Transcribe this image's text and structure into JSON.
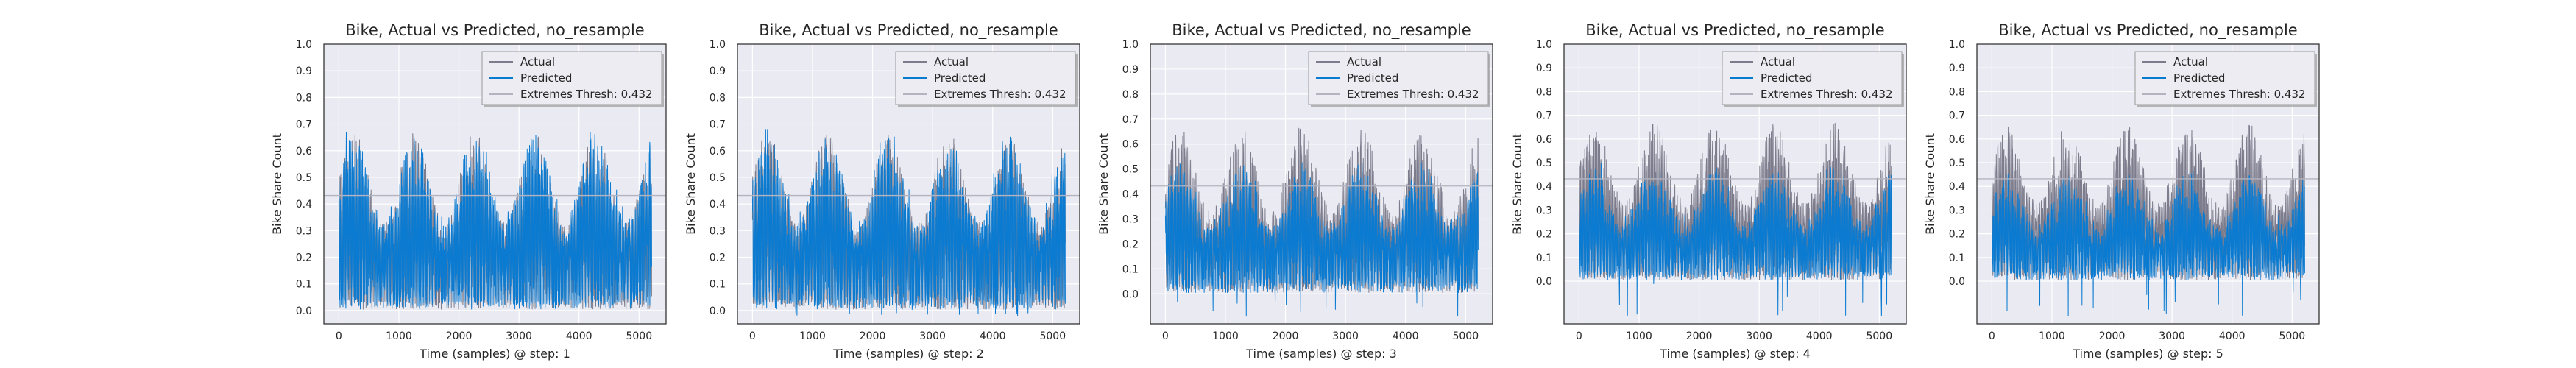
{
  "figure": {
    "colors": {
      "background": "#ffffff",
      "axes_face": "#eaeaf2",
      "grid": "#ffffff",
      "actual": "#7c7c8c",
      "predicted": "#0b7bd1",
      "threshold": "#b4b4c0",
      "legend_face": "#ececf2",
      "legend_edge": "#9a9a9a"
    }
  },
  "chart_data": [
    {
      "type": "line",
      "title": "Bike, Actual vs Predicted, no_resample",
      "xlabel": "Time (samples) @ step: 1",
      "ylabel": "Bike Share Count",
      "xlim": [
        -250,
        5450
      ],
      "ylim": [
        -0.05,
        1.0
      ],
      "xticks": [
        0,
        1000,
        2000,
        3000,
        4000,
        5000
      ],
      "xtick_labels": [
        "0",
        "1000",
        "2000",
        "3000",
        "4000",
        "5000"
      ],
      "yticks": [
        0.0,
        0.1,
        0.2,
        0.3,
        0.4,
        0.5,
        0.6,
        0.7,
        0.8,
        0.9,
        1.0
      ],
      "ytick_labels": [
        "0.0",
        "0.1",
        "0.2",
        "0.3",
        "0.4",
        "0.5",
        "0.6",
        "0.7",
        "0.8",
        "0.9",
        "1.0"
      ],
      "grid": true,
      "legend_position": "top-right",
      "series": [
        {
          "name": "Actual",
          "x_range": [
            0,
            5210
          ],
          "approx_range": [
            0.0,
            0.69
          ],
          "role": "actual"
        },
        {
          "name": "Predicted",
          "x_range": [
            0,
            5210
          ],
          "approx_range": [
            0.0,
            0.69
          ],
          "role": "predicted"
        },
        {
          "name": "Extremes Thresh: 0.432",
          "y": 0.432,
          "role": "threshold"
        }
      ]
    },
    {
      "type": "line",
      "title": "Bike, Actual vs Predicted, no_resample",
      "xlabel": "Time (samples) @ step: 2",
      "ylabel": "Bike Share Count",
      "xlim": [
        -250,
        5450
      ],
      "ylim": [
        -0.05,
        1.0
      ],
      "xticks": [
        0,
        1000,
        2000,
        3000,
        4000,
        5000
      ],
      "xtick_labels": [
        "0",
        "1000",
        "2000",
        "3000",
        "4000",
        "5000"
      ],
      "yticks": [
        0.0,
        0.1,
        0.2,
        0.3,
        0.4,
        0.5,
        0.6,
        0.7,
        0.8,
        0.9,
        1.0
      ],
      "ytick_labels": [
        "0.0",
        "0.1",
        "0.2",
        "0.3",
        "0.4",
        "0.5",
        "0.6",
        "0.7",
        "0.8",
        "0.9",
        "1.0"
      ],
      "grid": true,
      "legend_position": "top-right",
      "series": [
        {
          "name": "Actual",
          "x_range": [
            0,
            5210
          ],
          "approx_range": [
            0.0,
            0.69
          ],
          "role": "actual"
        },
        {
          "name": "Predicted",
          "x_range": [
            0,
            5210
          ],
          "approx_range": [
            -0.02,
            0.68
          ],
          "role": "predicted"
        },
        {
          "name": "Extremes Thresh: 0.432",
          "y": 0.432,
          "role": "threshold"
        }
      ]
    },
    {
      "type": "line",
      "title": "Bike, Actual vs Predicted, no_resample",
      "xlabel": "Time (samples) @ step: 3",
      "ylabel": "Bike Share Count",
      "xlim": [
        -250,
        5450
      ],
      "ylim": [
        -0.12,
        1.0
      ],
      "xticks": [
        0,
        1000,
        2000,
        3000,
        4000,
        5000
      ],
      "xtick_labels": [
        "0",
        "1000",
        "2000",
        "3000",
        "4000",
        "5000"
      ],
      "yticks": [
        0.0,
        0.1,
        0.2,
        0.3,
        0.4,
        0.5,
        0.6,
        0.7,
        0.8,
        0.9,
        1.0
      ],
      "ytick_labels": [
        "0.0",
        "0.1",
        "0.2",
        "0.3",
        "0.4",
        "0.5",
        "0.6",
        "0.7",
        "0.8",
        "0.9",
        "1.0"
      ],
      "grid": true,
      "legend_position": "top-right",
      "series": [
        {
          "name": "Actual",
          "x_range": [
            0,
            5210
          ],
          "approx_range": [
            0.0,
            0.69
          ],
          "role": "actual"
        },
        {
          "name": "Predicted",
          "x_range": [
            0,
            5210
          ],
          "approx_range": [
            -0.09,
            0.55
          ],
          "role": "predicted"
        },
        {
          "name": "Extremes Thresh: 0.432",
          "y": 0.432,
          "role": "threshold"
        }
      ]
    },
    {
      "type": "line",
      "title": "Bike, Actual vs Predicted, no_resample",
      "xlabel": "Time (samples) @ step: 4",
      "ylabel": "Bike Share Count",
      "xlim": [
        -250,
        5450
      ],
      "ylim": [
        -0.18,
        1.0
      ],
      "xticks": [
        0,
        1000,
        2000,
        3000,
        4000,
        5000
      ],
      "xtick_labels": [
        "0",
        "1000",
        "2000",
        "3000",
        "4000",
        "5000"
      ],
      "yticks": [
        0.0,
        0.1,
        0.2,
        0.3,
        0.4,
        0.5,
        0.6,
        0.7,
        0.8,
        0.9,
        1.0
      ],
      "ytick_labels": [
        "0.0",
        "0.1",
        "0.2",
        "0.3",
        "0.4",
        "0.5",
        "0.6",
        "0.7",
        "0.8",
        "0.9",
        "1.0"
      ],
      "grid": true,
      "legend_position": "top-right",
      "series": [
        {
          "name": "Actual",
          "x_range": [
            0,
            5210
          ],
          "approx_range": [
            0.0,
            0.69
          ],
          "role": "actual"
        },
        {
          "name": "Predicted",
          "x_range": [
            0,
            5210
          ],
          "approx_range": [
            -0.15,
            0.5
          ],
          "role": "predicted"
        },
        {
          "name": "Extremes Thresh: 0.432",
          "y": 0.432,
          "role": "threshold"
        }
      ]
    },
    {
      "type": "line",
      "title": "Bike, Actual vs Predicted, no_resample",
      "xlabel": "Time (samples) @ step: 5",
      "ylabel": "Bike Share Count",
      "xlim": [
        -250,
        5450
      ],
      "ylim": [
        -0.18,
        1.0
      ],
      "xticks": [
        0,
        1000,
        2000,
        3000,
        4000,
        5000
      ],
      "xtick_labels": [
        "0",
        "1000",
        "2000",
        "3000",
        "4000",
        "5000"
      ],
      "yticks": [
        0.0,
        0.1,
        0.2,
        0.3,
        0.4,
        0.5,
        0.6,
        0.7,
        0.8,
        0.9,
        1.0
      ],
      "ytick_labels": [
        "0.0",
        "0.1",
        "0.2",
        "0.3",
        "0.4",
        "0.5",
        "0.6",
        "0.7",
        "0.8",
        "0.9",
        "1.0"
      ],
      "grid": true,
      "legend_position": "top-right",
      "series": [
        {
          "name": "Actual",
          "x_range": [
            0,
            5210
          ],
          "approx_range": [
            0.0,
            0.69
          ],
          "role": "actual"
        },
        {
          "name": "Predicted",
          "x_range": [
            0,
            5210
          ],
          "approx_range": [
            -0.15,
            0.47
          ],
          "role": "predicted"
        },
        {
          "name": "Extremes Thresh: 0.432",
          "y": 0.432,
          "role": "threshold"
        }
      ]
    }
  ]
}
